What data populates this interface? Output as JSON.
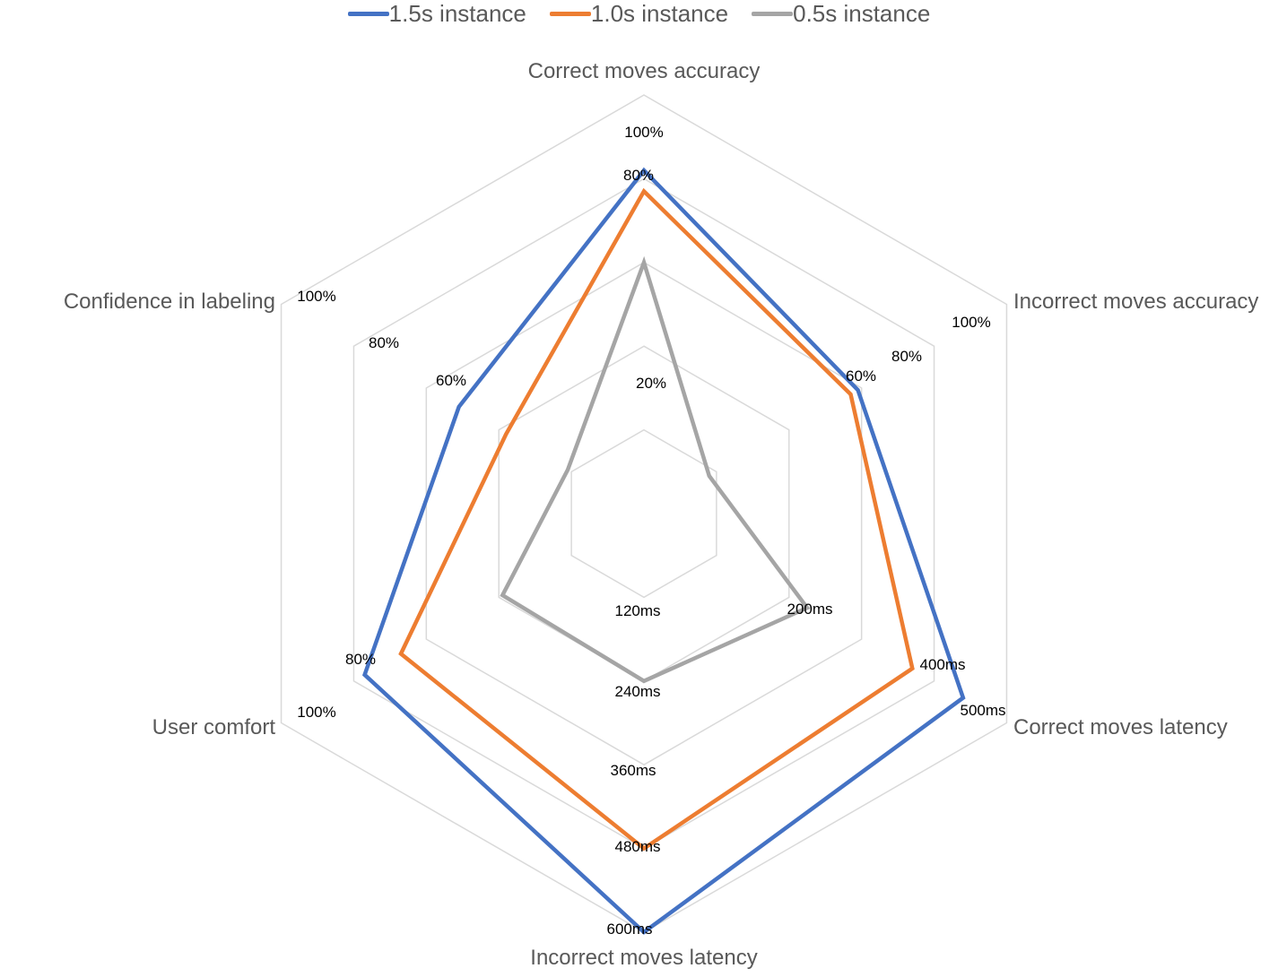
{
  "chart_data": {
    "type": "radar",
    "legend_position": "top",
    "axes": [
      {
        "name": "Correct moves accuracy",
        "tick_labels": [
          "20%",
          "80%",
          "100%"
        ]
      },
      {
        "name": "Incorrect moves accuracy",
        "tick_labels": [
          "60%",
          "80%",
          "100%"
        ]
      },
      {
        "name": "Correct moves latency",
        "tick_labels": [
          "200ms",
          "400ms",
          "500ms"
        ]
      },
      {
        "name": "Incorrect moves latency",
        "tick_labels": [
          "120ms",
          "240ms",
          "360ms",
          "480ms",
          "600ms"
        ]
      },
      {
        "name": "User comfort",
        "tick_labels": [
          "80%",
          "100%"
        ]
      },
      {
        "name": "Confidence in labeling",
        "tick_labels": [
          "60%",
          "80%",
          "100%"
        ]
      }
    ],
    "series": [
      {
        "name": "1.5s instance",
        "color": "#4472C4",
        "values": [
          0.82,
          0.59,
          0.88,
          1.0,
          0.77,
          0.51
        ]
      },
      {
        "name": "1.0s instance",
        "color": "#ED7D31",
        "values": [
          0.77,
          0.57,
          0.74,
          0.8,
          0.67,
          0.38
        ]
      },
      {
        "name": "0.5s instance",
        "color": "#A5A5A5",
        "values": [
          0.6,
          0.18,
          0.45,
          0.4,
          0.39,
          0.21
        ]
      }
    ],
    "grid": true
  }
}
